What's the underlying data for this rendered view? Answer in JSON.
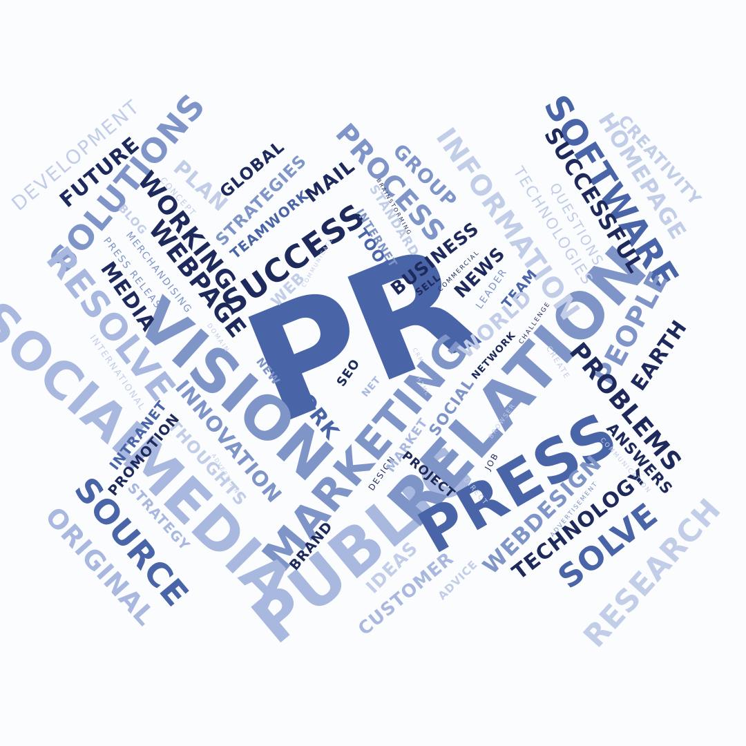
{
  "word_cloud": {
    "center": "PR",
    "words": {
      "pr": "PR",
      "public": "PUBLIC",
      "relation": "RELATION",
      "press": "PRESS",
      "marketing": "MARKETING",
      "vision": "VISION",
      "social": "SOCIAL",
      "media": "MEDIA",
      "media_small": "MEDIA",
      "success": "SUCCESS",
      "software": "SOFTWARE",
      "solutions": "SOLUTIONS",
      "resolve": "RESOLVE",
      "source": "SOURCE",
      "original": "ORIGINAL",
      "research": "RESEARCH",
      "solve": "SOLVE",
      "technology": "TECHNOLOGY",
      "webdesign": "WEBDESIGN",
      "people": "PEOPLE",
      "earth": "EARTH",
      "problems": "PROBLEMS",
      "answers": "ANSWERS",
      "process": "PROCESS",
      "information": "INFORMATION",
      "group": "GROUP",
      "successful": "SUCCESSFUL",
      "homepage": "HOMEPAGE",
      "creativity": "CREATIVITY",
      "technologies": "TECHNOLOGIES",
      "questions": "QUESTIONS",
      "development": "DEVELOPMENT",
      "future": "FUTURE",
      "plan": "PLAN",
      "global": "GLOBAL",
      "strategies": "STRATEGIES",
      "teamwork": "TEAMWORK",
      "mail": "MAIL",
      "working": "WORKING",
      "webpage": "WEBPAGE",
      "concept": "CONCEPT",
      "blog": "BLOG",
      "press_release": "PRESS RELEASE",
      "merchandising": "MERCHANDISING",
      "brainstorming": "BRAINSTORMING",
      "standard": "STANDARD",
      "internet": "INTERNET",
      "tools": "TOOLS",
      "business": "BUSINESS",
      "sell": "SELL",
      "commercial": "COMMERCIAL",
      "news": "NEWS",
      "leader": "LEADER",
      "team": "TEAM",
      "world": "WORLD",
      "web": "WEB",
      "communicate": "COMMUNICATE",
      "domain": "DOMAIN",
      "international": "INTERNATIONAL",
      "new": "NEW",
      "work": "WORK",
      "seo": "SEO",
      "net": "NET",
      "crm": "CRM",
      "html": "HTML",
      "network": "NETWORK",
      "challenge": "CHALLENGE",
      "create": "CREATE",
      "innovation": "INNOVATION",
      "thoughts": "THOUGHTS",
      "intranet": "INTRANET",
      "promotion": "PROMOTION",
      "strategy": "STRATEGY",
      "advertising": "ADVERTISING",
      "design": "DESIGN",
      "market": "MARKET",
      "social_small": "SOCIAL",
      "project": "PROJECT",
      "browser": "BROWSER",
      "job": "JOB",
      "direct": "DIRECT",
      "communication": "COMMUNICATION",
      "advertisement": "ADVERTISEMENT",
      "brand": "BRAND",
      "ideas": "IDEAS",
      "customer": "CUSTOMER",
      "advice": "ADVICE"
    }
  },
  "colors": {
    "background": "#fbfcfd",
    "navy": "#1e2a5c",
    "mid_blue": "#4a64a8",
    "soft_blue": "#7f95c8",
    "light_blue": "#a9b8de"
  }
}
